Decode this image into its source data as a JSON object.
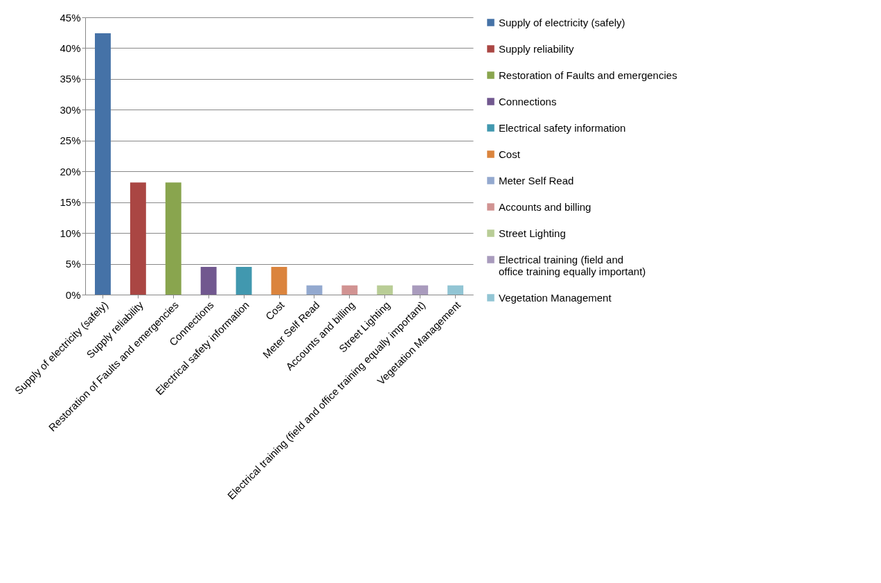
{
  "chart_data": {
    "type": "bar",
    "categories": [
      "Supply of electricity (safely)",
      "Supply reliability",
      "Restoration of Faults and emergencies",
      "Connections",
      "Electrical safety information",
      "Cost",
      "Meter Self Read",
      "Accounts and billing",
      "Street Lighting",
      "Electrical training (field and office training equally important)",
      "Vegetation Management"
    ],
    "series": [
      {
        "name": "Supply of electricity (safely)",
        "color": "#4572a7",
        "values": [
          42.4,
          null,
          null,
          null,
          null,
          null,
          null,
          null,
          null,
          null,
          null
        ]
      },
      {
        "name": "Supply reliability",
        "color": "#aa4643",
        "values": [
          null,
          18.2,
          null,
          null,
          null,
          null,
          null,
          null,
          null,
          null,
          null
        ]
      },
      {
        "name": "Restoration of Faults and emergencies",
        "color": "#89a54e",
        "values": [
          null,
          null,
          18.2,
          null,
          null,
          null,
          null,
          null,
          null,
          null,
          null
        ]
      },
      {
        "name": "Connections",
        "color": "#71588f",
        "values": [
          null,
          null,
          null,
          4.5,
          null,
          null,
          null,
          null,
          null,
          null,
          null
        ]
      },
      {
        "name": "Electrical safety information",
        "color": "#4198af",
        "values": [
          null,
          null,
          null,
          null,
          4.5,
          null,
          null,
          null,
          null,
          null,
          null
        ]
      },
      {
        "name": "Cost",
        "color": "#db843d",
        "values": [
          null,
          null,
          null,
          null,
          null,
          4.5,
          null,
          null,
          null,
          null,
          null
        ]
      },
      {
        "name": "Meter Self Read",
        "color": "#93a9cf",
        "values": [
          null,
          null,
          null,
          null,
          null,
          null,
          1.5,
          null,
          null,
          null,
          null
        ]
      },
      {
        "name": "Accounts and billing",
        "color": "#d19392",
        "values": [
          null,
          null,
          null,
          null,
          null,
          null,
          null,
          1.5,
          null,
          null,
          null
        ]
      },
      {
        "name": "Street Lighting",
        "color": "#b9cd96",
        "values": [
          null,
          null,
          null,
          null,
          null,
          null,
          null,
          null,
          1.5,
          null,
          null
        ]
      },
      {
        "name": "Electrical training (field and office training equally important)",
        "color": "#a99bbd",
        "values": [
          null,
          null,
          null,
          null,
          null,
          null,
          null,
          null,
          null,
          1.5,
          null
        ]
      },
      {
        "name": "Vegetation Management",
        "color": "#92c5d4",
        "values": [
          null,
          null,
          null,
          null,
          null,
          null,
          null,
          null,
          null,
          null,
          1.5
        ]
      }
    ],
    "ylim": [
      0,
      45
    ],
    "yticks": [
      {
        "value": 0,
        "label": "0%"
      },
      {
        "value": 5,
        "label": "5%"
      },
      {
        "value": 10,
        "label": "10%"
      },
      {
        "value": 15,
        "label": "15%"
      },
      {
        "value": 20,
        "label": "20%"
      },
      {
        "value": 25,
        "label": "25%"
      },
      {
        "value": 30,
        "label": "30%"
      },
      {
        "value": 35,
        "label": "35%"
      },
      {
        "value": 40,
        "label": "40%"
      },
      {
        "value": 45,
        "label": "45%"
      }
    ],
    "grid": "y",
    "legend": "right"
  }
}
